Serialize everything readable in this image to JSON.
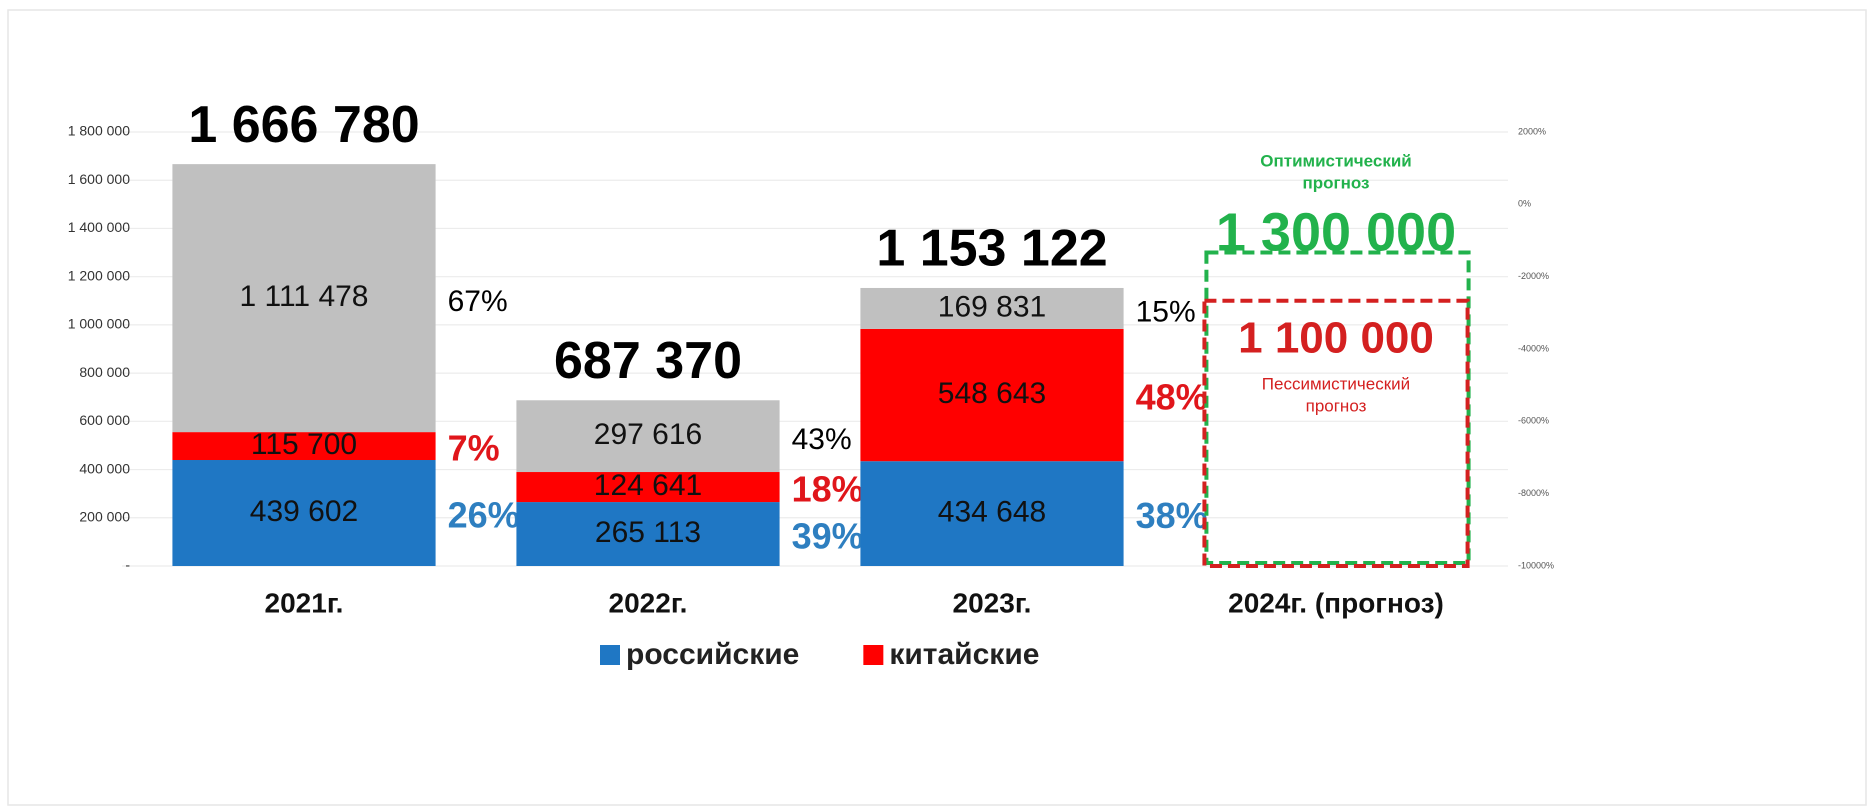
{
  "chart_data": {
    "type": "stacked_bar",
    "categories": [
      "2021г.",
      "2022г.",
      "2023г.",
      "2024г. (прогноз)"
    ],
    "series": [
      {
        "name": "российские",
        "color": "#1f77c4",
        "share_color": "#2e7fc0",
        "values": [
          439602,
          265113,
          434648,
          null
        ],
        "value_labels": [
          "439 602",
          "265 113",
          "434 648",
          null
        ],
        "share_labels": [
          "26%",
          "39%",
          "38%",
          null
        ]
      },
      {
        "name": "китайские",
        "color": "#ff0000",
        "share_color": "#e0161b",
        "values": [
          115700,
          124641,
          548643,
          null
        ],
        "value_labels": [
          "115 700",
          "124 641",
          "548 643",
          null
        ],
        "share_labels": [
          "7%",
          "18%",
          "48%",
          null
        ]
      },
      {
        "color": "#c0c0c0",
        "share_color": "#000000",
        "values": [
          1111478,
          297616,
          169831,
          null
        ],
        "value_labels": [
          "1 111 478",
          "297 616",
          "169 831",
          null
        ],
        "share_labels": [
          "67%",
          "43%",
          "15%",
          null
        ]
      }
    ],
    "total_labels": [
      "1 666 780",
      "687 370",
      "1 153 122",
      null
    ],
    "ylim": [
      0,
      1800000
    ],
    "yticks": [
      {
        "value": 0,
        "label": "-"
      },
      {
        "value": 200000,
        "label": "200 000"
      },
      {
        "value": 400000,
        "label": "400 000"
      },
      {
        "value": 600000,
        "label": "600 000"
      },
      {
        "value": 800000,
        "label": "800 000"
      },
      {
        "value": 1000000,
        "label": "1 000 000"
      },
      {
        "value": 1200000,
        "label": "1 200 000"
      },
      {
        "value": 1400000,
        "label": "1 400 000"
      },
      {
        "value": 1600000,
        "label": "1 600 000"
      },
      {
        "value": 1800000,
        "label": "1 800 000"
      }
    ],
    "y2lim": [
      -10000,
      2000
    ],
    "y2ticks": [
      {
        "value": -10000,
        "label": "-10000%"
      },
      {
        "value": -8000,
        "label": "-8000%"
      },
      {
        "value": -6000,
        "label": "-6000%"
      },
      {
        "value": -4000,
        "label": "-4000%"
      },
      {
        "value": -2000,
        "label": "-2000%"
      },
      {
        "value": 0,
        "label": "0%"
      },
      {
        "value": 2000,
        "label": "2000%"
      }
    ],
    "grid": true,
    "forecast": {
      "optimistic": {
        "title_lines": [
          "Оптимистический",
          "прогноз"
        ],
        "value": 1300000,
        "value_label": "1 300 000",
        "color": "#22b24c"
      },
      "pessimistic": {
        "title_lines": [
          "Пессимистический",
          "прогноз"
        ],
        "value": 1100000,
        "value_label": "1 100 000",
        "color": "#d42020"
      }
    }
  }
}
